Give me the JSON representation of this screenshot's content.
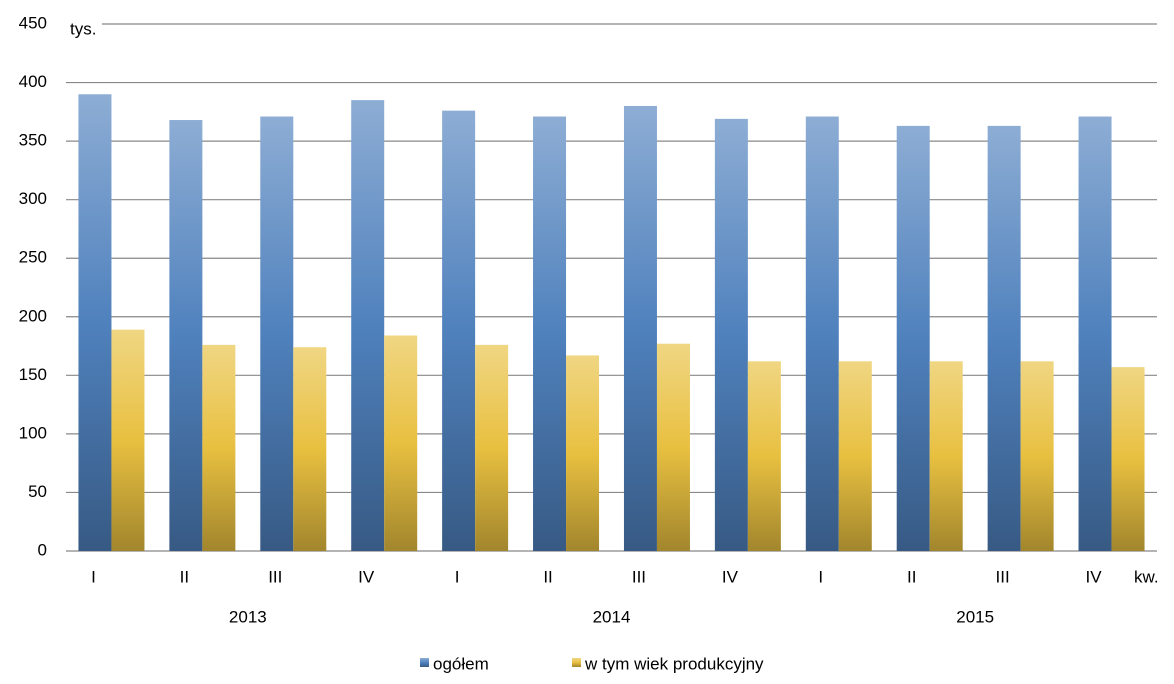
{
  "chart_data": {
    "type": "bar",
    "y_unit": "tys.",
    "x_unit": "kw.",
    "categories": [
      "I",
      "II",
      "III",
      "IV",
      "I",
      "II",
      "III",
      "IV",
      "I",
      "II",
      "III",
      "IV"
    ],
    "years": [
      "2013",
      "2014",
      "2015"
    ],
    "series": [
      {
        "name": "ogółem",
        "color": "#4f81bd",
        "values": [
          390,
          368,
          371,
          385,
          376,
          371,
          380,
          369,
          371,
          363,
          363,
          371
        ]
      },
      {
        "name": "w tym wiek produkcyjny",
        "color": "#e8c040",
        "values": [
          189,
          176,
          174,
          184,
          176,
          167,
          177,
          162,
          162,
          162,
          162,
          157
        ]
      }
    ],
    "ylim": [
      0,
      450
    ],
    "yticks": [
      0,
      50,
      100,
      150,
      200,
      250,
      300,
      350,
      400,
      450
    ],
    "grid": true
  }
}
